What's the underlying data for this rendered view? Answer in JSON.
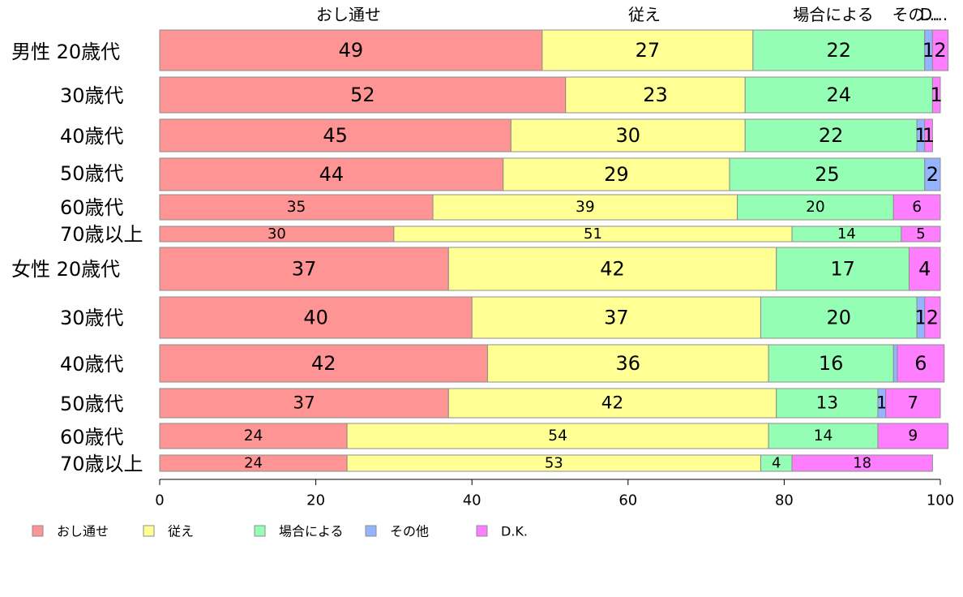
{
  "chart_data": {
    "type": "bar",
    "orientation": "horizontal",
    "stacked": true,
    "categories": [
      "男性 20歳代",
      "30歳代",
      "40歳代",
      "50歳代",
      "60歳代",
      "70歳以上",
      "女性 20歳代",
      "30歳代",
      "40歳代",
      "50歳代",
      "60歳代",
      "70歳以上"
    ],
    "series": [
      {
        "name": "おし通せ",
        "color": "#ff9494",
        "values": [
          49,
          52,
          45,
          44,
          35,
          30,
          37,
          40,
          42,
          37,
          24,
          24
        ]
      },
      {
        "name": "従え",
        "color": "#ffff94",
        "values": [
          27,
          23,
          30,
          29,
          39,
          51,
          42,
          37,
          36,
          42,
          54,
          53
        ]
      },
      {
        "name": "場合による",
        "color": "#94ffb4",
        "values": [
          22,
          24,
          22,
          25,
          20,
          14,
          17,
          20,
          16,
          13,
          14,
          4
        ]
      },
      {
        "name": "その他",
        "color": "#94b4ff",
        "values": [
          1,
          0,
          1,
          2,
          0,
          0,
          0,
          1,
          0.5,
          1,
          0,
          0
        ]
      },
      {
        "name": "D.K.",
        "color": "#ff7eff",
        "values": [
          2,
          1,
          1,
          0,
          6,
          5,
          4,
          2,
          6,
          7,
          9,
          18
        ]
      }
    ],
    "value_labels": [
      [
        "49",
        "27",
        "22",
        "1",
        "2"
      ],
      [
        "52",
        "23",
        "24",
        "",
        "1"
      ],
      [
        "45",
        "30",
        "22",
        "1",
        "1"
      ],
      [
        "44",
        "29",
        "25",
        "2",
        ""
      ],
      [
        "35",
        "39",
        "20",
        "",
        "6"
      ],
      [
        "30",
        "51",
        "14",
        "",
        "5"
      ],
      [
        "37",
        "42",
        "17",
        "",
        "4"
      ],
      [
        "40",
        "37",
        "20",
        "1",
        "2"
      ],
      [
        "42",
        "36",
        "16",
        "",
        "6"
      ],
      [
        "37",
        "42",
        "13",
        "1",
        "7"
      ],
      [
        "24",
        "54",
        "14",
        "",
        "9"
      ],
      [
        "24",
        "53",
        "4",
        "",
        "18"
      ]
    ],
    "top_labels": [
      "おし通せ",
      "従え",
      "場合による",
      "その他",
      "D.K."
    ],
    "top_label_display": [
      "おし通せ",
      "従え",
      "場合による",
      "その...",
      "D..."
    ],
    "xlim": [
      0,
      100
    ],
    "x_ticks": [
      "0",
      "20",
      "40",
      "60",
      "80",
      "100"
    ],
    "grid": false,
    "legend_position": "bottom"
  }
}
